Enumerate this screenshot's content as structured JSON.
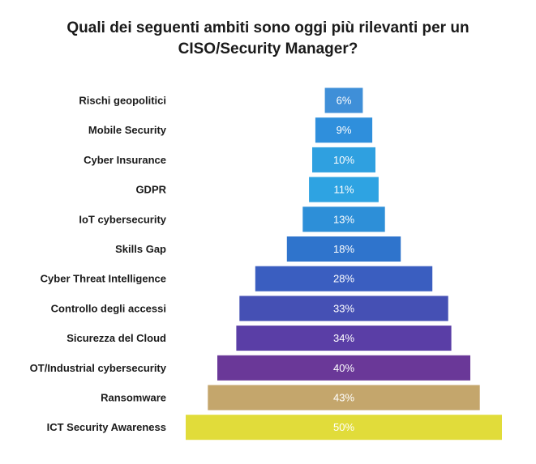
{
  "chart_data": {
    "type": "bar",
    "orientation": "horizontal-centered",
    "title_lines": [
      "Quali dei seguenti ambiti sono oggi più rilevanti per un",
      "CISO/Security Manager?"
    ],
    "categories": [
      "Rischi geopolitici",
      "Mobile Security",
      "Cyber Insurance",
      "GDPR",
      "IoT cybersecurity",
      "Skills Gap",
      "Cyber Threat Intelligence",
      "Controllo degli accessi",
      "Sicurezza del Cloud",
      "OT/Industrial cybersecurity",
      "Ransomware",
      "ICT Security Awareness"
    ],
    "values": [
      6,
      9,
      10,
      11,
      13,
      18,
      28,
      33,
      34,
      40,
      43,
      50
    ],
    "value_labels": [
      "6%",
      "9%",
      "10%",
      "11%",
      "13%",
      "18%",
      "28%",
      "33%",
      "34%",
      "40%",
      "43%",
      "50%"
    ],
    "colors": [
      "#3f8fd8",
      "#2f8fdc",
      "#2fa0e0",
      "#2ea3e2",
      "#2d8fd8",
      "#2f74cc",
      "#3a5ec0",
      "#4550b4",
      "#5a3ea6",
      "#6a3898",
      "#c4a66c",
      "#e1dc3a"
    ],
    "legend": "none",
    "grid": false
  }
}
